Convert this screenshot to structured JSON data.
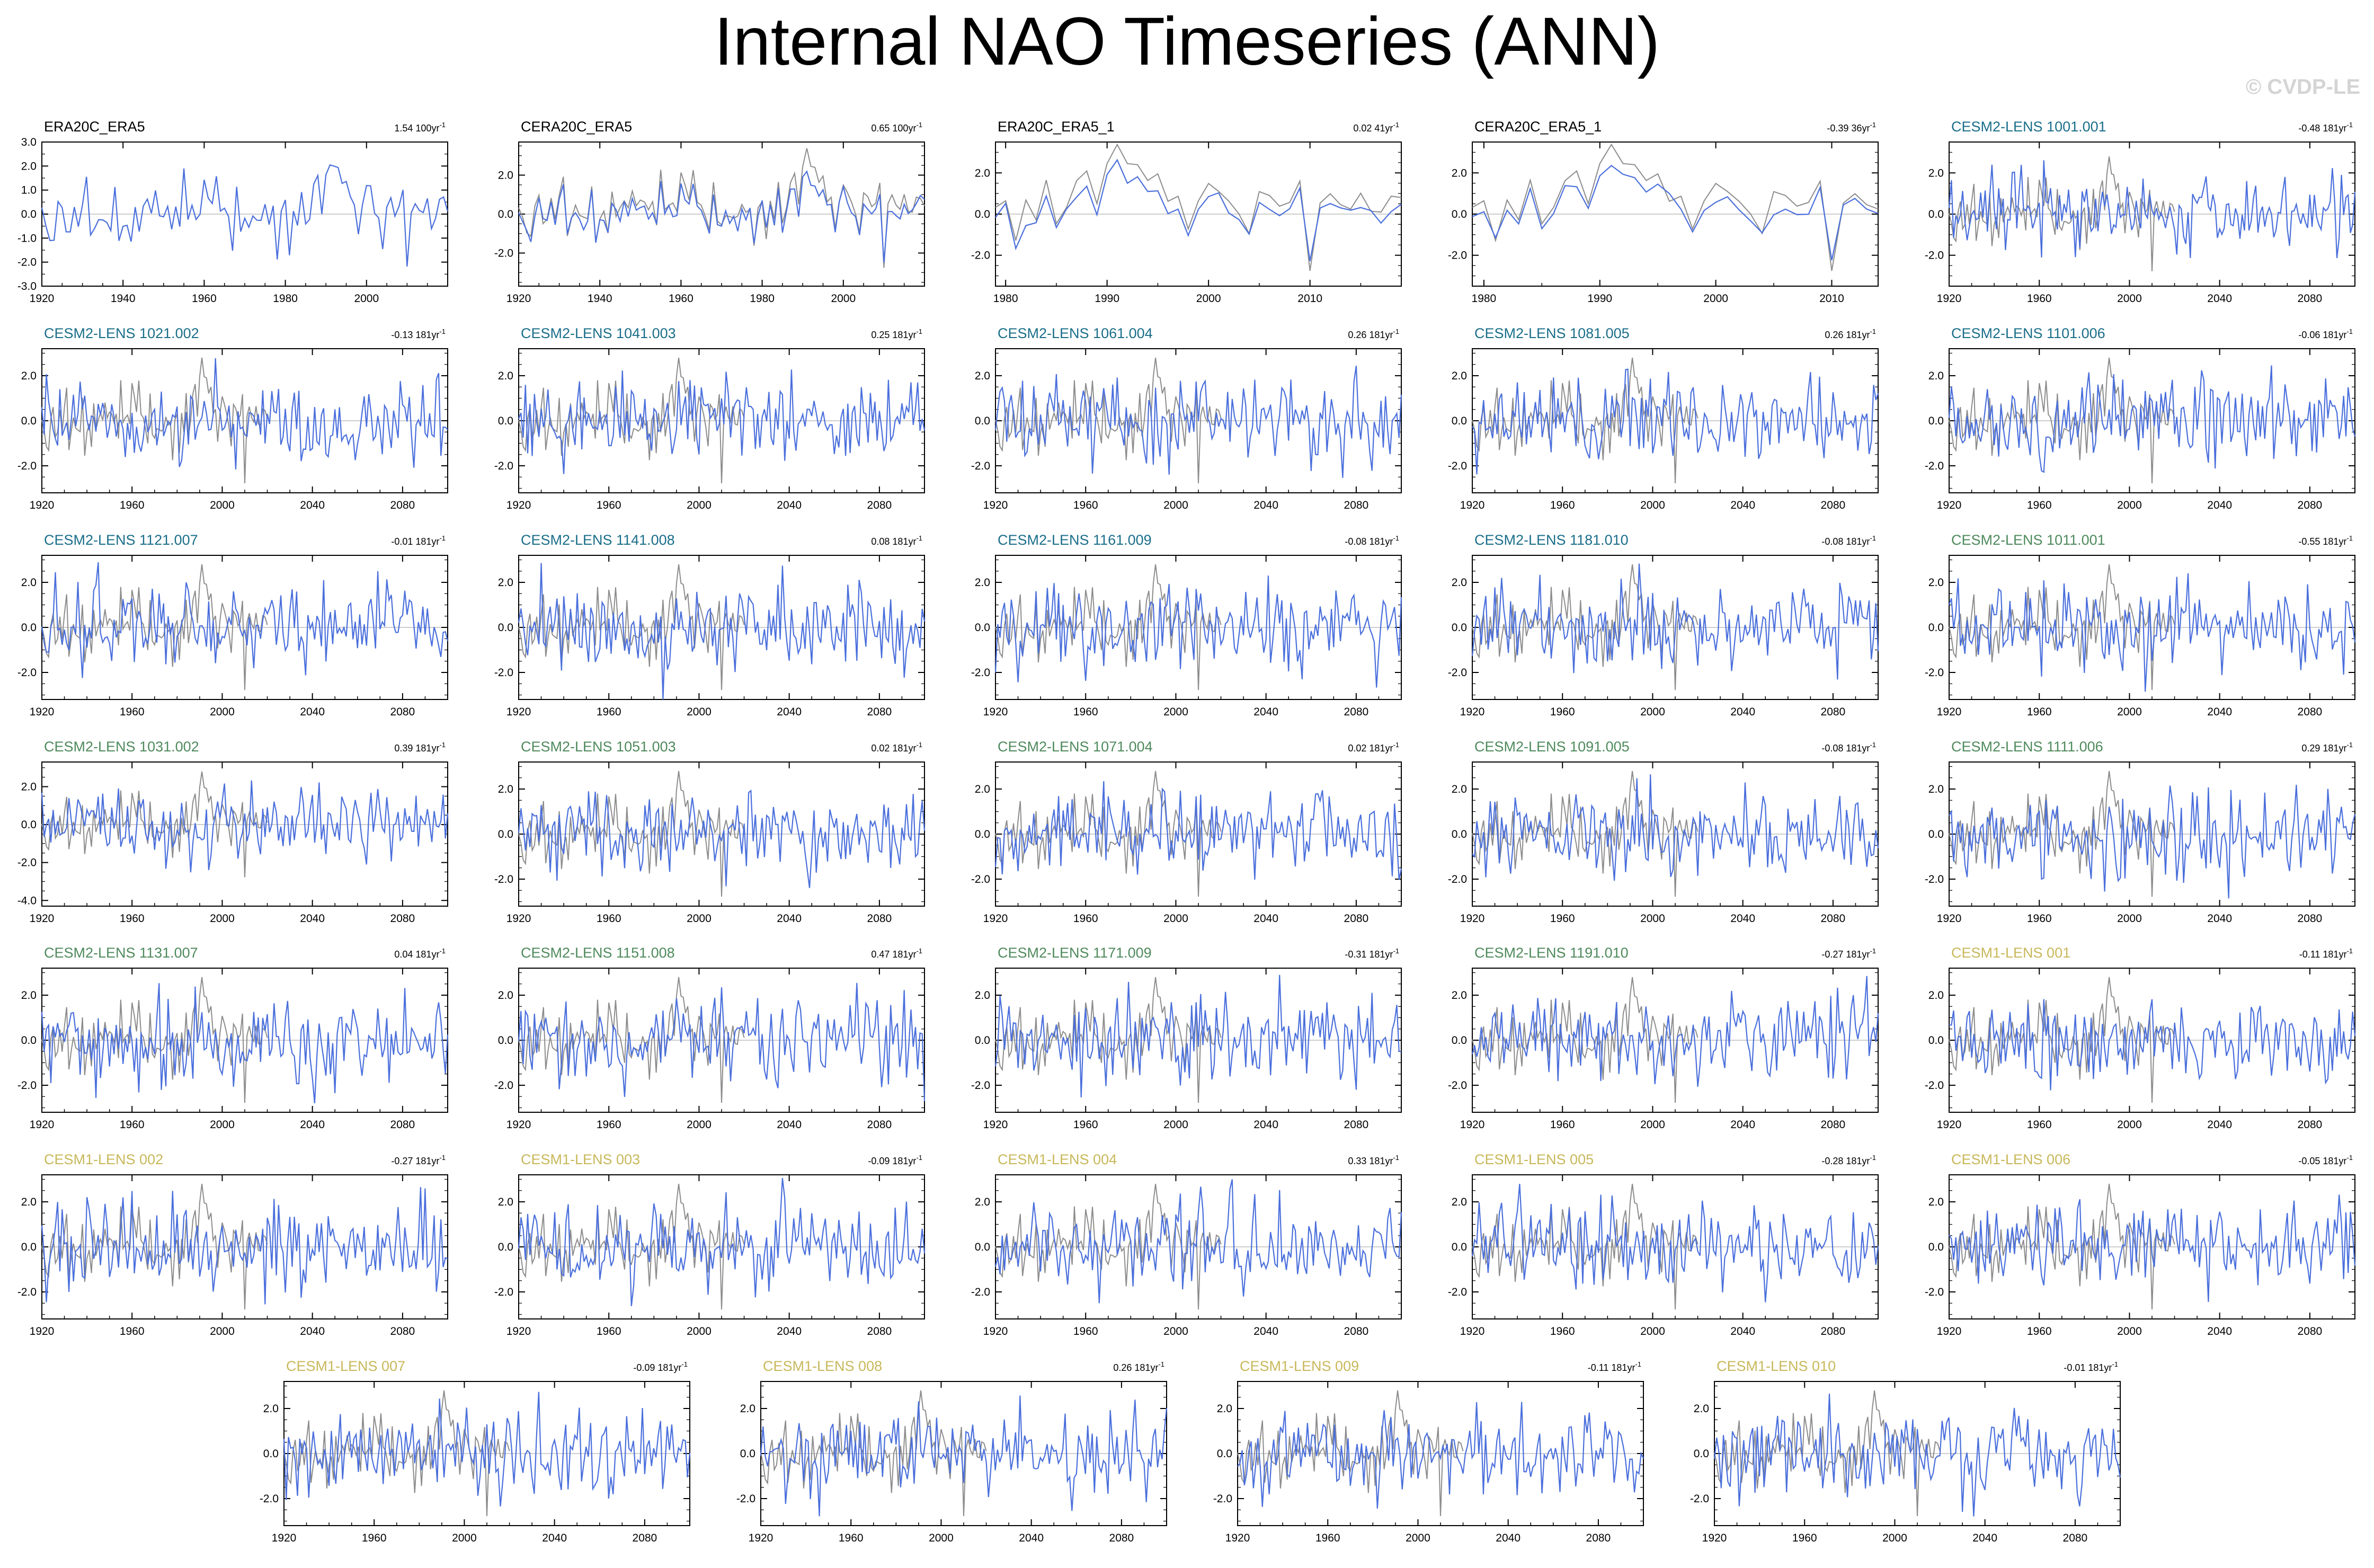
{
  "title": "Internal NAO Timeseries (ANN)",
  "copyright": "© CVDP-LE",
  "trend_unit": "yr",
  "colors": {
    "model_line": "#4a6fdc",
    "obs_line": "#8c8c8c",
    "zero_line": "#bdbdbd",
    "obs_title": "#000000",
    "cesm2_teal": "#1a6e8a",
    "cesm2_green": "#4e8a5c",
    "cesm1_gold": "#c8b85a"
  },
  "chart_data": [
    {
      "type": "line",
      "name": "ERA20C_ERA5",
      "trend": "1.54 100yr",
      "color": "obs_title",
      "x_range": [
        1920,
        2020
      ],
      "x_ticks": [
        "1920",
        "1940",
        "1960",
        "1980",
        "2000"
      ],
      "y_ticks": [
        "3.0",
        "2.0",
        "1.0",
        "0.0",
        "-1.0",
        "-2.0",
        "-3.0"
      ],
      "ylim": [
        -3,
        3
      ]
    },
    {
      "type": "line",
      "name": "CERA20C_ERA5",
      "trend": "0.65 100yr",
      "color": "obs_title",
      "x_range": [
        1920,
        2020
      ],
      "x_ticks": [
        "1920",
        "1940",
        "1960",
        "1980",
        "2000"
      ],
      "y_ticks": [
        "2.0",
        "0.0",
        "-2.0"
      ],
      "ylim": [
        -3.7,
        3.7
      ]
    },
    {
      "type": "line",
      "name": "ERA20C_ERA5_1",
      "trend": "0.02 41yr",
      "color": "obs_title",
      "x_range": [
        1979,
        2019
      ],
      "x_ticks": [
        "1980",
        "1990",
        "2000",
        "2010"
      ],
      "y_ticks": [
        "2.0",
        "0.0",
        "-2.0"
      ],
      "ylim": [
        -3.5,
        3.5
      ]
    },
    {
      "type": "line",
      "name": "CERA20C_ERA5_1",
      "trend": "-0.39 36yr",
      "color": "obs_title",
      "x_range": [
        1979,
        2014
      ],
      "x_ticks": [
        "1980",
        "1990",
        "2000",
        "2010"
      ],
      "y_ticks": [
        "2.0",
        "0.0",
        "-2.0"
      ],
      "ylim": [
        -3.5,
        3.5
      ]
    },
    {
      "type": "line",
      "name": "CESM2-LENS 1001.001",
      "trend": "-0.48 181yr",
      "color": "cesm2_teal",
      "x_range": [
        1920,
        2100
      ],
      "x_ticks": [
        "1920",
        "1960",
        "2000",
        "2040",
        "2080"
      ],
      "y_ticks": [
        "2.0",
        "0.0",
        "-2.0"
      ],
      "ylim": [
        -3.5,
        3.5
      ]
    },
    {
      "type": "line",
      "name": "CESM2-LENS 1021.002",
      "trend": "-0.13 181yr",
      "color": "cesm2_teal",
      "x_range": [
        1920,
        2100
      ],
      "x_ticks": [
        "1920",
        "1960",
        "2000",
        "2040",
        "2080"
      ],
      "y_ticks": [
        "2.0",
        "0.0",
        "-2.0"
      ],
      "ylim": [
        -3.2,
        3.2
      ]
    },
    {
      "type": "line",
      "name": "CESM2-LENS 1041.003",
      "trend": "0.25 181yr",
      "color": "cesm2_teal",
      "x_range": [
        1920,
        2100
      ],
      "x_ticks": [
        "1920",
        "1960",
        "2000",
        "2040",
        "2080"
      ],
      "y_ticks": [
        "2.0",
        "0.0",
        "-2.0"
      ],
      "ylim": [
        -3.2,
        3.2
      ]
    },
    {
      "type": "line",
      "name": "CESM2-LENS 1061.004",
      "trend": "0.26 181yr",
      "color": "cesm2_teal",
      "x_range": [
        1920,
        2100
      ],
      "x_ticks": [
        "1920",
        "1960",
        "2000",
        "2040",
        "2080"
      ],
      "y_ticks": [
        "2.0",
        "0.0",
        "-2.0"
      ],
      "ylim": [
        -3.2,
        3.2
      ]
    },
    {
      "type": "line",
      "name": "CESM2-LENS 1081.005",
      "trend": "0.26 181yr",
      "color": "cesm2_teal",
      "x_range": [
        1920,
        2100
      ],
      "x_ticks": [
        "1920",
        "1960",
        "2000",
        "2040",
        "2080"
      ],
      "y_ticks": [
        "2.0",
        "0.0",
        "-2.0"
      ],
      "ylim": [
        -3.2,
        3.2
      ]
    },
    {
      "type": "line",
      "name": "CESM2-LENS 1101.006",
      "trend": "-0.06 181yr",
      "color": "cesm2_teal",
      "x_range": [
        1920,
        2100
      ],
      "x_ticks": [
        "1920",
        "1960",
        "2000",
        "2040",
        "2080"
      ],
      "y_ticks": [
        "2.0",
        "0.0",
        "-2.0"
      ],
      "ylim": [
        -3.2,
        3.2
      ]
    },
    {
      "type": "line",
      "name": "CESM2-LENS 1121.007",
      "trend": "-0.01 181yr",
      "color": "cesm2_teal",
      "x_range": [
        1920,
        2100
      ],
      "x_ticks": [
        "1920",
        "1960",
        "2000",
        "2040",
        "2080"
      ],
      "y_ticks": [
        "2.0",
        "0.0",
        "-2.0"
      ],
      "ylim": [
        -3.2,
        3.2
      ]
    },
    {
      "type": "line",
      "name": "CESM2-LENS 1141.008",
      "trend": "0.08 181yr",
      "color": "cesm2_teal",
      "x_range": [
        1920,
        2100
      ],
      "x_ticks": [
        "1920",
        "1960",
        "2000",
        "2040",
        "2080"
      ],
      "y_ticks": [
        "2.0",
        "0.0",
        "-2.0"
      ],
      "ylim": [
        -3.2,
        3.2
      ]
    },
    {
      "type": "line",
      "name": "CESM2-LENS 1161.009",
      "trend": "-0.08 181yr",
      "color": "cesm2_teal",
      "x_range": [
        1920,
        2100
      ],
      "x_ticks": [
        "1920",
        "1960",
        "2000",
        "2040",
        "2080"
      ],
      "y_ticks": [
        "2.0",
        "0.0",
        "-2.0"
      ],
      "ylim": [
        -3.2,
        3.2
      ]
    },
    {
      "type": "line",
      "name": "CESM2-LENS 1181.010",
      "trend": "-0.08 181yr",
      "color": "cesm2_teal",
      "x_range": [
        1920,
        2100
      ],
      "x_ticks": [
        "1920",
        "1960",
        "2000",
        "2040",
        "2080"
      ],
      "y_ticks": [
        "2.0",
        "0.0",
        "-2.0"
      ],
      "ylim": [
        -3.2,
        3.2
      ]
    },
    {
      "type": "line",
      "name": "CESM2-LENS 1011.001",
      "trend": "-0.55 181yr",
      "color": "cesm2_green",
      "x_range": [
        1920,
        2100
      ],
      "x_ticks": [
        "1920",
        "1960",
        "2000",
        "2040",
        "2080"
      ],
      "y_ticks": [
        "2.0",
        "0.0",
        "-2.0"
      ],
      "ylim": [
        -3.2,
        3.2
      ]
    },
    {
      "type": "line",
      "name": "CESM2-LENS 1031.002",
      "trend": "0.39 181yr",
      "color": "cesm2_green",
      "x_range": [
        1920,
        2100
      ],
      "x_ticks": [
        "1920",
        "1960",
        "2000",
        "2040",
        "2080"
      ],
      "y_ticks": [
        "2.0",
        "0.0",
        "-2.0",
        "-4.0"
      ],
      "ylim": [
        -4.3,
        3.3
      ]
    },
    {
      "type": "line",
      "name": "CESM2-LENS 1051.003",
      "trend": "0.02 181yr",
      "color": "cesm2_green",
      "x_range": [
        1920,
        2100
      ],
      "x_ticks": [
        "1920",
        "1960",
        "2000",
        "2040",
        "2080"
      ],
      "y_ticks": [
        "2.0",
        "0.0",
        "-2.0"
      ],
      "ylim": [
        -3.2,
        3.2
      ]
    },
    {
      "type": "line",
      "name": "CESM2-LENS 1071.004",
      "trend": "0.02 181yr",
      "color": "cesm2_green",
      "x_range": [
        1920,
        2100
      ],
      "x_ticks": [
        "1920",
        "1960",
        "2000",
        "2040",
        "2080"
      ],
      "y_ticks": [
        "2.0",
        "0.0",
        "-2.0"
      ],
      "ylim": [
        -3.2,
        3.2
      ]
    },
    {
      "type": "line",
      "name": "CESM2-LENS 1091.005",
      "trend": "-0.08 181yr",
      "color": "cesm2_green",
      "x_range": [
        1920,
        2100
      ],
      "x_ticks": [
        "1920",
        "1960",
        "2000",
        "2040",
        "2080"
      ],
      "y_ticks": [
        "2.0",
        "0.0",
        "-2.0"
      ],
      "ylim": [
        -3.2,
        3.2
      ]
    },
    {
      "type": "line",
      "name": "CESM2-LENS 1111.006",
      "trend": "0.29 181yr",
      "color": "cesm2_green",
      "x_range": [
        1920,
        2100
      ],
      "x_ticks": [
        "1920",
        "1960",
        "2000",
        "2040",
        "2080"
      ],
      "y_ticks": [
        "2.0",
        "0.0",
        "-2.0"
      ],
      "ylim": [
        -3.2,
        3.2
      ]
    },
    {
      "type": "line",
      "name": "CESM2-LENS 1131.007",
      "trend": "0.04 181yr",
      "color": "cesm2_green",
      "x_range": [
        1920,
        2100
      ],
      "x_ticks": [
        "1920",
        "1960",
        "2000",
        "2040",
        "2080"
      ],
      "y_ticks": [
        "2.0",
        "0.0",
        "-2.0"
      ],
      "ylim": [
        -3.2,
        3.2
      ]
    },
    {
      "type": "line",
      "name": "CESM2-LENS 1151.008",
      "trend": "0.47 181yr",
      "color": "cesm2_green",
      "x_range": [
        1920,
        2100
      ],
      "x_ticks": [
        "1920",
        "1960",
        "2000",
        "2040",
        "2080"
      ],
      "y_ticks": [
        "2.0",
        "0.0",
        "-2.0"
      ],
      "ylim": [
        -3.2,
        3.2
      ]
    },
    {
      "type": "line",
      "name": "CESM2-LENS 1171.009",
      "trend": "-0.31 181yr",
      "color": "cesm2_green",
      "x_range": [
        1920,
        2100
      ],
      "x_ticks": [
        "1920",
        "1960",
        "2000",
        "2040",
        "2080"
      ],
      "y_ticks": [
        "2.0",
        "0.0",
        "-2.0"
      ],
      "ylim": [
        -3.2,
        3.2
      ]
    },
    {
      "type": "line",
      "name": "CESM2-LENS 1191.010",
      "trend": "-0.27 181yr",
      "color": "cesm2_green",
      "x_range": [
        1920,
        2100
      ],
      "x_ticks": [
        "1920",
        "1960",
        "2000",
        "2040",
        "2080"
      ],
      "y_ticks": [
        "2.0",
        "0.0",
        "-2.0"
      ],
      "ylim": [
        -3.2,
        3.2
      ]
    },
    {
      "type": "line",
      "name": "CESM1-LENS 001",
      "trend": "-0.11 181yr",
      "color": "cesm1_gold",
      "x_range": [
        1920,
        2100
      ],
      "x_ticks": [
        "1920",
        "1960",
        "2000",
        "2040",
        "2080"
      ],
      "y_ticks": [
        "2.0",
        "0.0",
        "-2.0"
      ],
      "ylim": [
        -3.2,
        3.2
      ]
    },
    {
      "type": "line",
      "name": "CESM1-LENS 002",
      "trend": "-0.27 181yr",
      "color": "cesm1_gold",
      "x_range": [
        1920,
        2100
      ],
      "x_ticks": [
        "1920",
        "1960",
        "2000",
        "2040",
        "2080"
      ],
      "y_ticks": [
        "2.0",
        "0.0",
        "-2.0"
      ],
      "ylim": [
        -3.2,
        3.2
      ]
    },
    {
      "type": "line",
      "name": "CESM1-LENS 003",
      "trend": "-0.09 181yr",
      "color": "cesm1_gold",
      "x_range": [
        1920,
        2100
      ],
      "x_ticks": [
        "1920",
        "1960",
        "2000",
        "2040",
        "2080"
      ],
      "y_ticks": [
        "2.0",
        "0.0",
        "-2.0"
      ],
      "ylim": [
        -3.2,
        3.2
      ]
    },
    {
      "type": "line",
      "name": "CESM1-LENS 004",
      "trend": "0.33 181yr",
      "color": "cesm1_gold",
      "x_range": [
        1920,
        2100
      ],
      "x_ticks": [
        "1920",
        "1960",
        "2000",
        "2040",
        "2080"
      ],
      "y_ticks": [
        "2.0",
        "0.0",
        "-2.0"
      ],
      "ylim": [
        -3.2,
        3.2
      ]
    },
    {
      "type": "line",
      "name": "CESM1-LENS 005",
      "trend": "-0.28 181yr",
      "color": "cesm1_gold",
      "x_range": [
        1920,
        2100
      ],
      "x_ticks": [
        "1920",
        "1960",
        "2000",
        "2040",
        "2080"
      ],
      "y_ticks": [
        "2.0",
        "0.0",
        "-2.0"
      ],
      "ylim": [
        -3.2,
        3.2
      ]
    },
    {
      "type": "line",
      "name": "CESM1-LENS 006",
      "trend": "-0.05 181yr",
      "color": "cesm1_gold",
      "x_range": [
        1920,
        2100
      ],
      "x_ticks": [
        "1920",
        "1960",
        "2000",
        "2040",
        "2080"
      ],
      "y_ticks": [
        "2.0",
        "0.0",
        "-2.0"
      ],
      "ylim": [
        -3.2,
        3.2
      ]
    },
    {
      "type": "line",
      "name": "CESM1-LENS 007",
      "trend": "-0.09 181yr",
      "color": "cesm1_gold",
      "x_range": [
        1920,
        2100
      ],
      "x_ticks": [
        "1920",
        "1960",
        "2000",
        "2040",
        "2080"
      ],
      "y_ticks": [
        "2.0",
        "0.0",
        "-2.0"
      ],
      "ylim": [
        -3.2,
        3.2
      ]
    },
    {
      "type": "line",
      "name": "CESM1-LENS 008",
      "trend": "0.26 181yr",
      "color": "cesm1_gold",
      "x_range": [
        1920,
        2100
      ],
      "x_ticks": [
        "1920",
        "1960",
        "2000",
        "2040",
        "2080"
      ],
      "y_ticks": [
        "2.0",
        "0.0",
        "-2.0"
      ],
      "ylim": [
        -3.2,
        3.2
      ]
    },
    {
      "type": "line",
      "name": "CESM1-LENS 009",
      "trend": "-0.11 181yr",
      "color": "cesm1_gold",
      "x_range": [
        1920,
        2100
      ],
      "x_ticks": [
        "1920",
        "1960",
        "2000",
        "2040",
        "2080"
      ],
      "y_ticks": [
        "2.0",
        "0.0",
        "-2.0"
      ],
      "ylim": [
        -3.2,
        3.2
      ]
    },
    {
      "type": "line",
      "name": "CESM1-LENS 010",
      "trend": "-0.01 181yr",
      "color": "cesm1_gold",
      "x_range": [
        1920,
        2100
      ],
      "x_ticks": [
        "1920",
        "1960",
        "2000",
        "2040",
        "2080"
      ],
      "y_ticks": [
        "2.0",
        "0.0",
        "-2.0"
      ],
      "ylim": [
        -3.2,
        3.2
      ]
    }
  ]
}
